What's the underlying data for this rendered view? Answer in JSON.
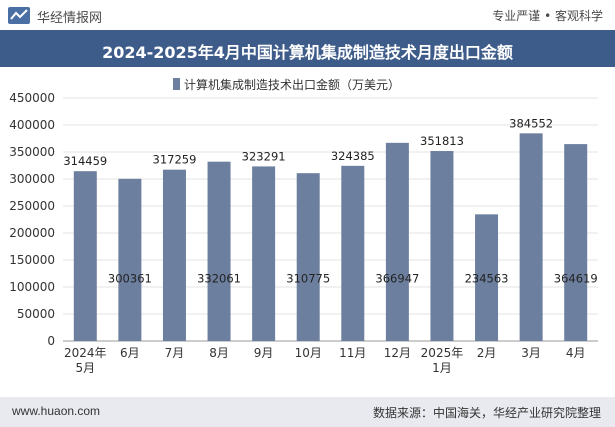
{
  "header": {
    "brand": "华经情报网",
    "tags": "专业严谨 • 客观科学",
    "title": "2024-2025年4月中国计算机集成制造技术月度出口金额"
  },
  "footer": {
    "site": "www.huaon.com",
    "source": "数据来源：中国海关，华经产业研究院整理"
  },
  "colors": {
    "bar": "#6d7f9e",
    "title_bg": "#3e5c8a",
    "footer_bg": "#e8eaef"
  },
  "chart_data": {
    "type": "bar",
    "title": "2024-2025年4月中国计算机集成制造技术月度出口金额",
    "legend": "计算机集成制造技术出口金额（万美元）",
    "categories": [
      "2024年\n5月",
      "6月",
      "7月",
      "8月",
      "9月",
      "10月",
      "11月",
      "12月",
      "2025年\n1月",
      "2月",
      "3月",
      "4月"
    ],
    "values": [
      314459,
      300361,
      317259,
      332061,
      323291,
      310775,
      324385,
      366947,
      351813,
      234563,
      384552,
      364619
    ],
    "label_position": [
      "above",
      "inside",
      "above",
      "inside",
      "above",
      "inside",
      "above",
      "inside",
      "above",
      "inside",
      "above",
      "inside"
    ],
    "ylim": [
      0,
      450000
    ],
    "yticks": [
      0,
      50000,
      100000,
      150000,
      200000,
      250000,
      300000,
      350000,
      400000,
      450000
    ],
    "xlabel": "",
    "ylabel": ""
  }
}
